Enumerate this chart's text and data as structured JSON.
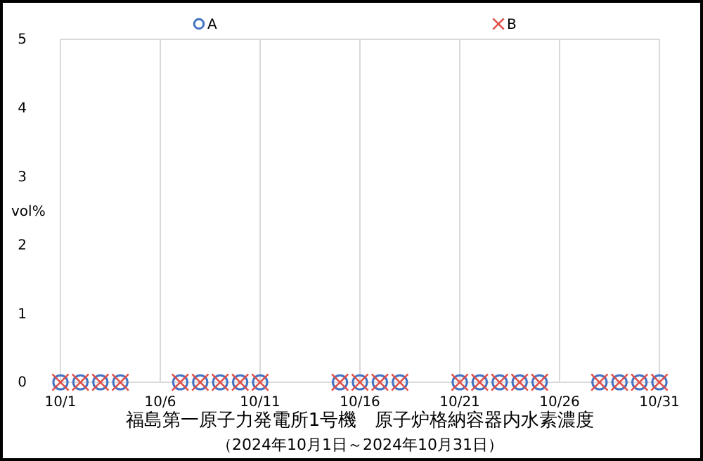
{
  "chart_data": {
    "type": "scatter",
    "title": "福島第一原子力発電所1号機　原子炉格納容器内水素濃度",
    "subtitle": "（2024年10月1日～2024年10月31日）",
    "ylabel": "vol%",
    "x": [
      "2024-10-01",
      "2024-10-02",
      "2024-10-03",
      "2024-10-04",
      "2024-10-07",
      "2024-10-08",
      "2024-10-09",
      "2024-10-10",
      "2024-10-11",
      "2024-10-15",
      "2024-10-16",
      "2024-10-17",
      "2024-10-18",
      "2024-10-21",
      "2024-10-22",
      "2024-10-23",
      "2024-10-24",
      "2024-10-25",
      "2024-10-28",
      "2024-10-29",
      "2024-10-30",
      "2024-10-31"
    ],
    "series": [
      {
        "name": "A",
        "color": "#4472c4",
        "marker": "circle",
        "values": [
          0,
          0,
          0,
          0,
          0,
          0,
          0,
          0,
          0,
          0,
          0,
          0,
          0,
          0,
          0,
          0,
          0,
          0,
          0,
          0,
          0,
          0
        ]
      },
      {
        "name": "B",
        "color": "#e0504a",
        "marker": "cross",
        "values": [
          0,
          0,
          0,
          0,
          0,
          0,
          0,
          0,
          0,
          0,
          0,
          0,
          0,
          0,
          0,
          0,
          0,
          0,
          0,
          0,
          0,
          0
        ]
      }
    ],
    "xlim": [
      "2024-10-01",
      "2024-10-31"
    ],
    "xticks": [
      {
        "value": "2024-10-01",
        "label": "10/1"
      },
      {
        "value": "2024-10-06",
        "label": "10/6"
      },
      {
        "value": "2024-10-11",
        "label": "10/11"
      },
      {
        "value": "2024-10-16",
        "label": "10/16"
      },
      {
        "value": "2024-10-21",
        "label": "10/21"
      },
      {
        "value": "2024-10-26",
        "label": "10/26"
      },
      {
        "value": "2024-10-31",
        "label": "10/31"
      }
    ],
    "ylim": [
      0,
      5
    ],
    "yticks": [
      0,
      1,
      2,
      3,
      4,
      5
    ],
    "grid": "x",
    "legend": "top"
  }
}
